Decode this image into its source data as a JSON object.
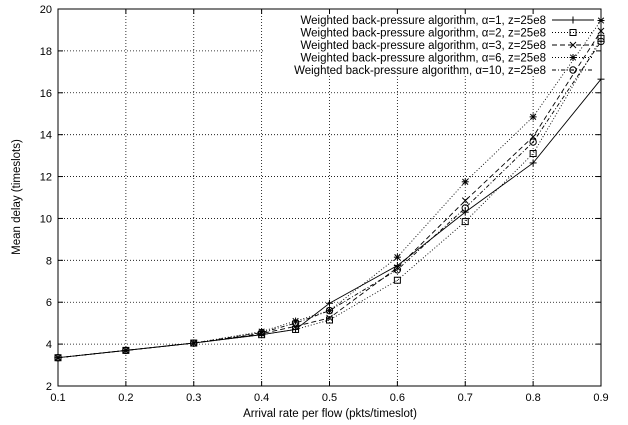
{
  "chart_data": {
    "type": "line",
    "title": "",
    "xlabel": "Arrival rate per flow (pkts/timeslot)",
    "ylabel": "Mean delay (timeslots)",
    "xlim": [
      0.1,
      0.9
    ],
    "ylim": [
      2,
      20
    ],
    "xticks": [
      "0.1",
      "0.2",
      "0.3",
      "0.4",
      "0.5",
      "0.6",
      "0.7",
      "0.8",
      "0.9"
    ],
    "yticks": [
      "2",
      "4",
      "6",
      "8",
      "10",
      "12",
      "14",
      "16",
      "18",
      "20"
    ],
    "grid": true,
    "legend_position": "top-right",
    "x": [
      0.1,
      0.2,
      0.3,
      0.4,
      0.45,
      0.5,
      0.6,
      0.7,
      0.8,
      0.9
    ],
    "series": [
      {
        "name": "Weighted back-pressure algorithm, α=1, z=25e8",
        "marker": "plus",
        "dash": "solid",
        "values": [
          3.35,
          3.7,
          4.05,
          4.45,
          4.7,
          5.95,
          7.75,
          10.3,
          12.65,
          16.65
        ]
      },
      {
        "name": "Weighted back-pressure algorithm, α=2, z=25e8",
        "marker": "square",
        "dash": "dotted",
        "values": [
          3.35,
          3.7,
          4.05,
          4.45,
          4.7,
          5.15,
          7.05,
          9.85,
          13.1,
          18.6
        ]
      },
      {
        "name": "Weighted back-pressure algorithm, α=3, z=25e8",
        "marker": "cross",
        "dash": "dashed",
        "values": [
          3.35,
          3.7,
          4.05,
          4.5,
          4.85,
          5.25,
          7.65,
          10.85,
          13.9,
          18.95
        ]
      },
      {
        "name": "Weighted back-pressure algorithm, α=6, z=25e8",
        "marker": "asterisk",
        "dash": "dotted",
        "values": [
          3.35,
          3.7,
          4.05,
          4.6,
          5.1,
          5.6,
          8.15,
          11.75,
          14.85,
          19.45
        ]
      },
      {
        "name": "Weighted back-pressure algorithm, α=10, z=25e8",
        "marker": "circle",
        "dash": "dashdot",
        "values": [
          3.35,
          3.7,
          4.05,
          4.55,
          5.0,
          5.6,
          7.55,
          10.5,
          13.65,
          18.45
        ]
      }
    ]
  }
}
